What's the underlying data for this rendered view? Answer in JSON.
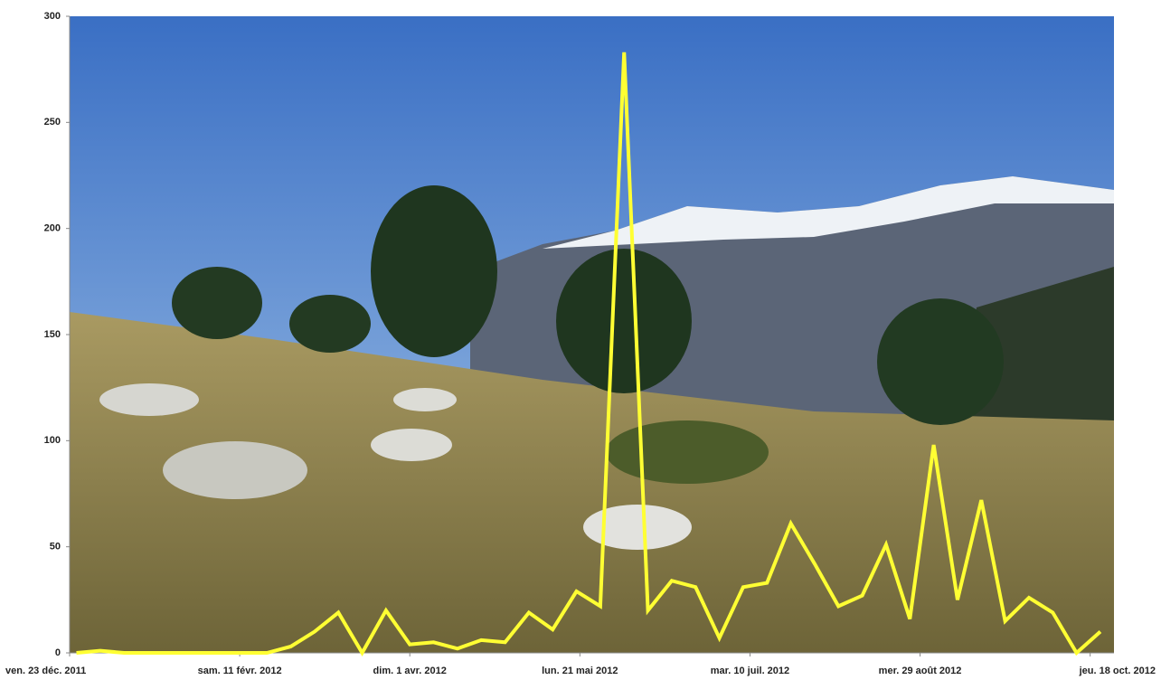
{
  "chart_data": {
    "type": "line",
    "x": [
      2,
      9,
      16,
      23,
      30,
      37,
      44,
      51,
      58,
      65,
      72,
      79,
      86,
      93,
      100,
      107,
      114,
      121,
      128,
      135,
      142,
      149,
      156,
      163,
      170,
      177,
      184,
      191,
      198,
      205,
      212,
      219,
      226,
      233,
      240,
      247,
      254,
      261,
      268,
      275,
      282,
      289,
      296,
      303
    ],
    "series": [
      {
        "color": "#ffff33",
        "values": [
          0,
          1,
          0,
          0,
          0,
          0,
          0,
          0,
          0,
          3,
          10,
          19,
          0,
          20,
          4,
          5,
          2,
          6,
          5,
          19,
          11,
          29,
          22,
          283,
          20,
          34,
          31,
          7,
          31,
          33,
          61,
          42,
          22,
          27,
          51,
          16,
          98,
          25,
          72,
          15,
          26,
          19,
          0,
          10
        ]
      }
    ],
    "xlim": [
      0,
      307
    ],
    "xticks": [
      {
        "value": 0,
        "label": "ven. 23 déc. 2011"
      },
      {
        "value": 50,
        "label": "sam. 11 févr. 2012"
      },
      {
        "value": 100,
        "label": "dim. 1 avr. 2012"
      },
      {
        "value": 150,
        "label": "lun. 21 mai 2012"
      },
      {
        "value": 200,
        "label": "mar. 10 juil. 2012"
      },
      {
        "value": 250,
        "label": "mer. 29 août 2012"
      },
      {
        "value": 300,
        "label": "jeu. 18 oct. 2012"
      }
    ],
    "ylim": [
      0,
      300
    ],
    "yticks": [
      0,
      50,
      100,
      150,
      200,
      250,
      300
    ]
  }
}
